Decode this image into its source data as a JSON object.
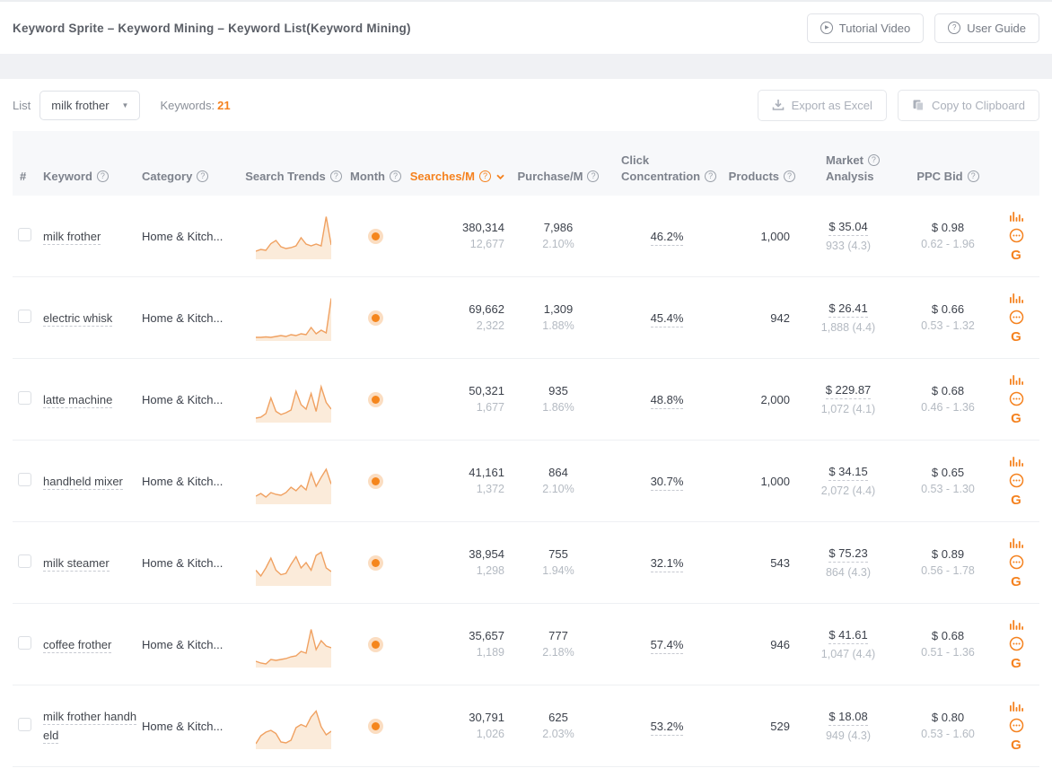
{
  "icons": {
    "help": "?",
    "play": "▶",
    "caret_down": "▼",
    "google": "G"
  },
  "colors": {
    "accent": "#f5821f",
    "spark_line": "#f0a161",
    "spark_fill": "#f9ddc2",
    "text_primary": "#3c414b",
    "text_secondary": "#b4bac2",
    "header_bg": "#f7f8fa"
  },
  "header": {
    "title": "Keyword Sprite – Keyword Mining – Keyword List(Keyword Mining)",
    "tutorial_button": "Tutorial Video",
    "user_guide_button": "User Guide"
  },
  "toolbar": {
    "list_label": "List",
    "list_value": "milk frother",
    "keywords_label": "Keywords:",
    "keywords_count": "21",
    "export_button": "Export as Excel",
    "copy_button": "Copy to Clipboard"
  },
  "table": {
    "hash_header": "#",
    "headers": {
      "keyword": "Keyword",
      "category": "Category",
      "search_trends": "Search Trends",
      "month": "Month",
      "searches": "Searches/M",
      "purchase": "Purchase/M",
      "click_line1": "Click",
      "click_line2": "Concentration",
      "products": "Products",
      "market_line1": "Market",
      "market_line2": "Analysis",
      "ppc": "PPC Bid"
    },
    "sorted_column": "Searches/M",
    "sort_direction": "desc",
    "rows": [
      {
        "keyword": "milk frother",
        "category": "Home & Kitch...",
        "trend": [
          18,
          22,
          20,
          35,
          42,
          28,
          24,
          26,
          30,
          48,
          34,
          30,
          34,
          30,
          95,
          32
        ],
        "searches": "380,314",
        "searches_sub": "12,677",
        "purchase": "7,986",
        "purchase_rate": "2.10%",
        "click_concentration": "46.2%",
        "products": "1,000",
        "market_price": "$ 35.04",
        "market_reviews": "933 (4.3)",
        "ppc_bid": "$ 0.98",
        "ppc_range": "0.62 - 1.96"
      },
      {
        "keyword": "electric whisk",
        "category": "Home & Kitch...",
        "trend": [
          8,
          8,
          9,
          8,
          10,
          12,
          10,
          14,
          12,
          16,
          14,
          30,
          16,
          24,
          18,
          95
        ],
        "searches": "69,662",
        "searches_sub": "2,322",
        "purchase": "1,309",
        "purchase_rate": "1.88%",
        "click_concentration": "45.4%",
        "products": "942",
        "market_price": "$ 26.41",
        "market_reviews": "1,888 (4.4)",
        "ppc_bid": "$ 0.66",
        "ppc_range": "0.53 - 1.32"
      },
      {
        "keyword": "latte machine",
        "category": "Home & Kitch...",
        "trend": [
          10,
          12,
          20,
          55,
          25,
          18,
          22,
          28,
          70,
          40,
          30,
          65,
          25,
          80,
          45,
          30
        ],
        "searches": "50,321",
        "searches_sub": "1,677",
        "purchase": "935",
        "purchase_rate": "1.86%",
        "click_concentration": "48.8%",
        "products": "2,000",
        "market_price": "$ 229.87",
        "market_reviews": "1,072 (4.1)",
        "ppc_bid": "$ 0.68",
        "ppc_range": "0.46 - 1.36"
      },
      {
        "keyword": "handheld mixer",
        "category": "Home & Kitch...",
        "trend": [
          18,
          24,
          16,
          26,
          22,
          20,
          26,
          38,
          30,
          42,
          32,
          70,
          40,
          60,
          78,
          45
        ],
        "searches": "41,161",
        "searches_sub": "1,372",
        "purchase": "864",
        "purchase_rate": "2.10%",
        "click_concentration": "30.7%",
        "products": "1,000",
        "market_price": "$ 34.15",
        "market_reviews": "2,072 (4.4)",
        "ppc_bid": "$ 0.65",
        "ppc_range": "0.53 - 1.30"
      },
      {
        "keyword": "milk steamer",
        "category": "Home & Kitch...",
        "trend": [
          35,
          22,
          40,
          62,
          35,
          25,
          28,
          48,
          65,
          40,
          52,
          35,
          68,
          75,
          40,
          32
        ],
        "searches": "38,954",
        "searches_sub": "1,298",
        "purchase": "755",
        "purchase_rate": "1.94%",
        "click_concentration": "32.1%",
        "products": "543",
        "market_price": "$ 75.23",
        "market_reviews": "864 (4.3)",
        "ppc_bid": "$ 0.89",
        "ppc_range": "0.56 - 1.78"
      },
      {
        "keyword": "coffee frother",
        "category": "Home & Kitch...",
        "trend": [
          14,
          10,
          8,
          18,
          16,
          18,
          20,
          24,
          26,
          36,
          32,
          85,
          40,
          60,
          48,
          44
        ],
        "searches": "35,657",
        "searches_sub": "1,189",
        "purchase": "777",
        "purchase_rate": "2.18%",
        "click_concentration": "57.4%",
        "products": "946",
        "market_price": "$ 41.61",
        "market_reviews": "1,047 (4.4)",
        "ppc_bid": "$ 0.68",
        "ppc_range": "0.51 - 1.36"
      },
      {
        "keyword": "milk frother handheld",
        "category": "Home & Kitch...",
        "trend": [
          12,
          30,
          38,
          42,
          35,
          16,
          14,
          20,
          48,
          55,
          50,
          72,
          85,
          50,
          32,
          40
        ],
        "searches": "30,791",
        "searches_sub": "1,026",
        "purchase": "625",
        "purchase_rate": "2.03%",
        "click_concentration": "53.2%",
        "products": "529",
        "market_price": "$ 18.08",
        "market_reviews": "949 (4.3)",
        "ppc_bid": "$ 0.80",
        "ppc_range": "0.53 - 1.60"
      }
    ]
  }
}
